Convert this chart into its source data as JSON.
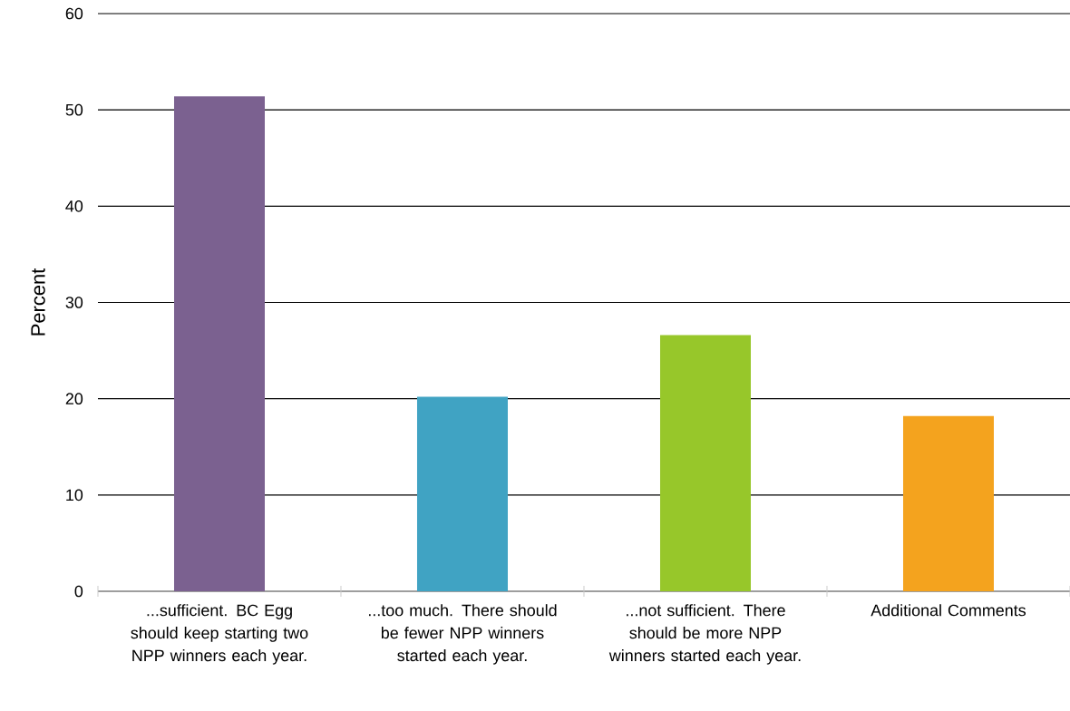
{
  "chart_data": {
    "type": "bar",
    "ylabel": "Percent",
    "categories": [
      "...sufficient. BC Egg should keep starting two NPP winners each year.",
      "...too much. There should be fewer NPP winners started each year.",
      "...not sufficient. There should be more NPP winners started each year.",
      "Additional Comments"
    ],
    "values": [
      51.4,
      20.2,
      26.6,
      18.2
    ],
    "colors": [
      "#7b6190",
      "#40a3c3",
      "#97c72a",
      "#f4a31e"
    ],
    "ylim": [
      0,
      60
    ],
    "yticks": [
      0,
      10,
      20,
      30,
      40,
      50,
      60
    ],
    "grid": "y"
  }
}
